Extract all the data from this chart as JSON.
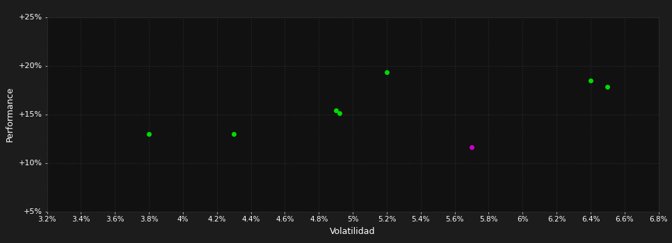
{
  "background_color": "#1c1c1c",
  "plot_bg_color": "#111111",
  "text_color": "#ffffff",
  "xlabel": "Volatilidad",
  "ylabel": "Performance",
  "xlim": [
    0.032,
    0.068
  ],
  "ylim": [
    0.05,
    0.25
  ],
  "xticks": [
    0.032,
    0.034,
    0.036,
    0.038,
    0.04,
    0.042,
    0.044,
    0.046,
    0.048,
    0.05,
    0.052,
    0.054,
    0.056,
    0.058,
    0.06,
    0.062,
    0.064,
    0.066,
    0.068
  ],
  "yticks": [
    0.05,
    0.1,
    0.15,
    0.2,
    0.25
  ],
  "xtick_labels": [
    "3.2%",
    "3.4%",
    "3.6%",
    "3.8%",
    "4%",
    "4.2%",
    "4.4%",
    "4.6%",
    "4.8%",
    "5%",
    "5.2%",
    "5.4%",
    "5.6%",
    "5.8%",
    "6%",
    "6.2%",
    "6.4%",
    "6.6%",
    "6.8%"
  ],
  "ytick_labels": [
    "+5%",
    "+10%",
    "+15%",
    "+20%",
    "+25%"
  ],
  "green_points": [
    [
      0.038,
      0.13
    ],
    [
      0.043,
      0.13
    ],
    [
      0.049,
      0.154
    ],
    [
      0.0492,
      0.151
    ],
    [
      0.052,
      0.193
    ],
    [
      0.064,
      0.185
    ],
    [
      0.065,
      0.178
    ]
  ],
  "magenta_points": [
    [
      0.057,
      0.116
    ]
  ],
  "dot_size": 25,
  "dot_color_green": "#00dd00",
  "dot_color_magenta": "#cc00cc"
}
